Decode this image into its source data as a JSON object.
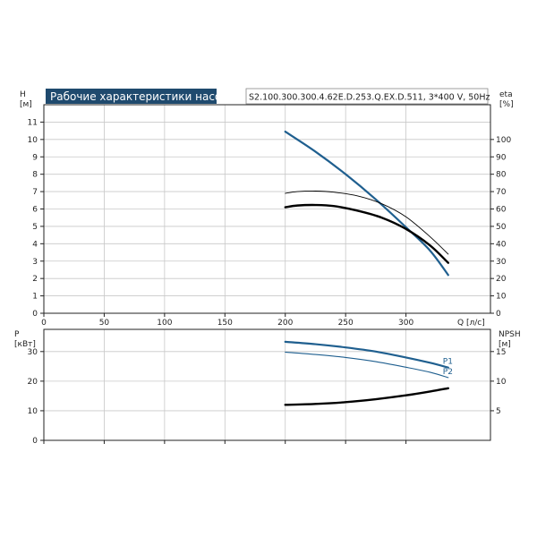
{
  "colors": {
    "blue": "#1f5f8f",
    "black": "#000000",
    "title_bg": "#1f4a6e"
  },
  "chart_data": [
    {
      "type": "line",
      "title": "Рабочие характеристики насоса",
      "subtitle": "S2.100.300.300.4.62E.D.253.Q.EX.D.511, 3*400 V, 50Hz",
      "xlabel": "Q [л/с]",
      "ylabel": "H\n[м]",
      "y2label": "eta\n[%]",
      "xlim": [
        0,
        370
      ],
      "ylim": [
        0,
        12
      ],
      "y2lim": [
        0,
        120
      ],
      "xticks": [
        0,
        50,
        100,
        150,
        200,
        250,
        300
      ],
      "yticks": [
        0,
        1,
        2,
        3,
        4,
        5,
        6,
        7,
        8,
        9,
        10,
        11
      ],
      "y2ticks": [
        0,
        10,
        20,
        30,
        40,
        50,
        60,
        70,
        80,
        90,
        100
      ],
      "grid": true,
      "series": [
        {
          "color": "#1f5f8f",
          "axis": "left",
          "width": 2.2,
          "x": [
            200,
            225,
            250,
            275,
            300,
            320,
            335
          ],
          "y": [
            10.45,
            9.3,
            8.0,
            6.55,
            4.95,
            3.6,
            2.2
          ]
        },
        {
          "color": "#000000",
          "axis": "right",
          "width": 2.4,
          "x": [
            200,
            210,
            225,
            240,
            260,
            280,
            300,
            320,
            335
          ],
          "y": [
            61,
            62,
            62.3,
            61.7,
            59,
            55,
            48.5,
            39,
            29
          ]
        },
        {
          "color": "#000000",
          "axis": "right",
          "width": 0.9,
          "x": [
            200,
            210,
            225,
            240,
            260,
            280,
            300,
            320,
            335
          ],
          "y": [
            69,
            70,
            70.3,
            69.7,
            67.5,
            63,
            55.5,
            44,
            34
          ]
        }
      ]
    },
    {
      "type": "line",
      "xlabel": "",
      "ylabel": "P\n[кВт]",
      "y2label": "NPSH\n[м]",
      "xlim": [
        0,
        370
      ],
      "ylim": [
        0,
        37.5
      ],
      "y2lim": [
        0,
        18.75
      ],
      "yticks": [
        0,
        10,
        20,
        30
      ],
      "y2ticks": [
        5,
        10,
        15
      ],
      "grid": true,
      "series": [
        {
          "name": "P1",
          "color": "#1f5f8f",
          "axis": "left",
          "width": 2.2,
          "x": [
            200,
            225,
            250,
            275,
            300,
            320,
            335
          ],
          "y": [
            33.3,
            32.5,
            31.4,
            30.0,
            28.0,
            26.2,
            24.6
          ]
        },
        {
          "name": "P2",
          "color": "#1f5f8f",
          "axis": "left",
          "width": 1.1,
          "x": [
            200,
            225,
            250,
            275,
            300,
            320,
            335
          ],
          "y": [
            29.8,
            29.0,
            28.0,
            26.6,
            24.7,
            23.0,
            21.2
          ]
        },
        {
          "color": "#000000",
          "axis": "right",
          "width": 2.4,
          "x": [
            200,
            225,
            250,
            275,
            300,
            320,
            335
          ],
          "y": [
            6.0,
            6.15,
            6.45,
            6.95,
            7.6,
            8.25,
            8.8
          ]
        }
      ]
    }
  ]
}
